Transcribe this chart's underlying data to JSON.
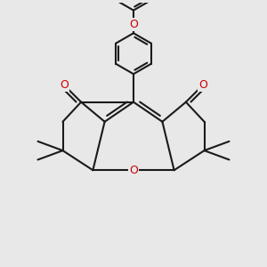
{
  "bg_color": "#e8e8e8",
  "bond_color": "#1a1a1a",
  "bond_width": 1.5,
  "O_color": "#cc0000",
  "font_size_atom": 9,
  "figsize": [
    3.0,
    3.0
  ],
  "dpi": 100,
  "xlim": [
    0,
    10
  ],
  "ylim": [
    0,
    10
  ]
}
